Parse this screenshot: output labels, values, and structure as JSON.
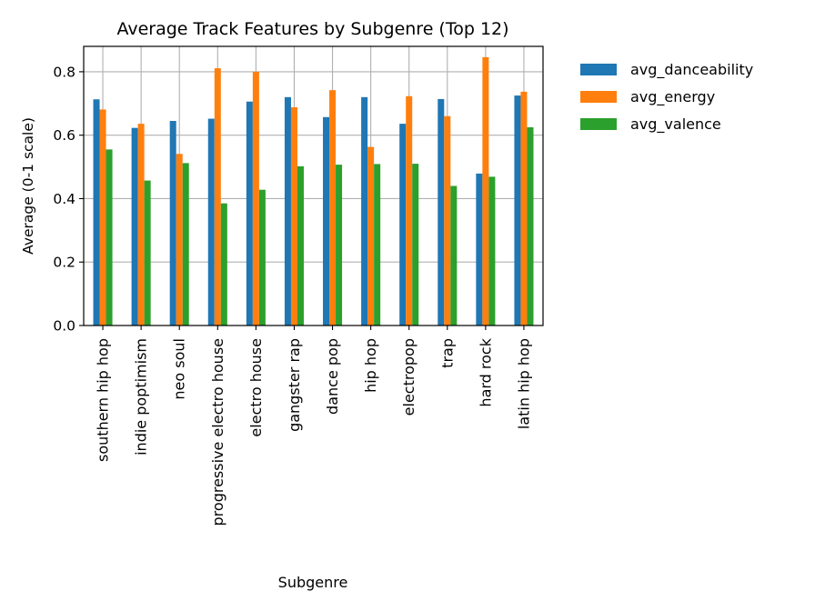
{
  "chart_data": {
    "type": "bar",
    "title": "Average Track Features by Subgenre (Top 12)",
    "xlabel": "Subgenre",
    "ylabel": "Average (0-1 scale)",
    "ylim": [
      0,
      0.88
    ],
    "yticks": [
      0.0,
      0.2,
      0.4,
      0.6,
      0.8
    ],
    "ytick_labels": [
      "0.0",
      "0.2",
      "0.4",
      "0.6",
      "0.8"
    ],
    "grid": true,
    "legend_position": "outside-right-top",
    "categories": [
      "southern hip hop",
      "indie poptimism",
      "neo soul",
      "progressive electro house",
      "electro house",
      "gangster rap",
      "dance pop",
      "hip hop",
      "electropop",
      "trap",
      "hard rock",
      "latin hip hop"
    ],
    "series": [
      {
        "name": "avg_danceability",
        "color": "#1f77b4",
        "values": [
          0.713,
          0.623,
          0.645,
          0.652,
          0.706,
          0.72,
          0.657,
          0.72,
          0.636,
          0.714,
          0.479,
          0.725
        ]
      },
      {
        "name": "avg_energy",
        "color": "#ff7f0e",
        "values": [
          0.681,
          0.636,
          0.541,
          0.811,
          0.8,
          0.688,
          0.742,
          0.563,
          0.723,
          0.66,
          0.846,
          0.737
        ]
      },
      {
        "name": "avg_valence",
        "color": "#2ca02c",
        "values": [
          0.555,
          0.457,
          0.512,
          0.385,
          0.428,
          0.502,
          0.507,
          0.509,
          0.51,
          0.44,
          0.469,
          0.625
        ]
      }
    ]
  }
}
